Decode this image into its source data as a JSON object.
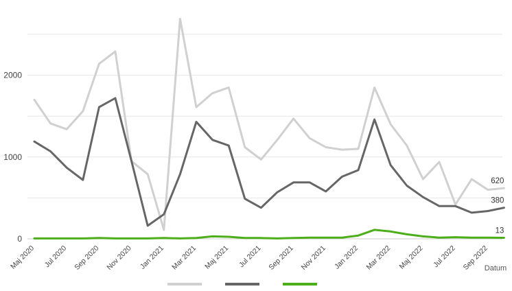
{
  "chart_data": {
    "type": "line",
    "xlabel": "Datum",
    "ylabel": "",
    "title": "",
    "ylim": [
      0,
      2700
    ],
    "yticks": [
      0,
      1000,
      2000
    ],
    "grid": true,
    "legend": "bottom",
    "categories": [
      "Maj 2020",
      "Jun 2020",
      "Jul 2020",
      "Aug 2020",
      "Sep 2020",
      "Okt 2020",
      "Nov 2020",
      "Dec 2020",
      "Jan 2021",
      "Feb 2021",
      "Mar 2021",
      "Apr 2021",
      "Maj 2021",
      "Jun 2021",
      "Jul 2021",
      "Aug 2021",
      "Sep 2021",
      "Okt 2021",
      "Nov 2021",
      "Dec 2021",
      "Jan 2022",
      "Feb 2022",
      "Mar 2022",
      "Apr 2022",
      "Maj 2022",
      "Jun 2022",
      "Jul 2022",
      "Aug 2022",
      "Sep 2022",
      "Okt 2022"
    ],
    "xtick_labels": [
      "Maj 2020",
      "Jul 2020",
      "Sep 2020",
      "Nov 2020",
      "Jan 2021",
      "Mar 2021",
      "Maj 2021",
      "Jul 2021",
      "Sep 2021",
      "Nov 2021",
      "Jan 2022",
      "Mar 2022",
      "Maj 2022",
      "Jul 2022",
      "Sep 2022"
    ],
    "series": [
      {
        "color": "#d0d0d0",
        "end_label": "620",
        "values": [
          1700,
          1410,
          1340,
          1560,
          2140,
          2290,
          950,
          790,
          110,
          2690,
          1610,
          1780,
          1850,
          1120,
          970,
          1210,
          1470,
          1230,
          1120,
          1090,
          1100,
          1850,
          1400,
          1140,
          730,
          940,
          420,
          730,
          600,
          620
        ]
      },
      {
        "color": "#666666",
        "end_label": "380",
        "values": [
          1190,
          1070,
          870,
          720,
          1610,
          1720,
          950,
          160,
          300,
          790,
          1430,
          1210,
          1140,
          490,
          380,
          570,
          690,
          690,
          580,
          760,
          840,
          1460,
          900,
          650,
          510,
          400,
          400,
          320,
          340,
          380
        ]
      },
      {
        "color": "#4caf1a",
        "end_label": "13",
        "values": [
          5,
          5,
          5,
          5,
          10,
          5,
          5,
          5,
          10,
          5,
          10,
          30,
          25,
          10,
          10,
          5,
          10,
          15,
          15,
          15,
          40,
          110,
          90,
          55,
          30,
          15,
          20,
          15,
          15,
          13
        ]
      }
    ]
  }
}
